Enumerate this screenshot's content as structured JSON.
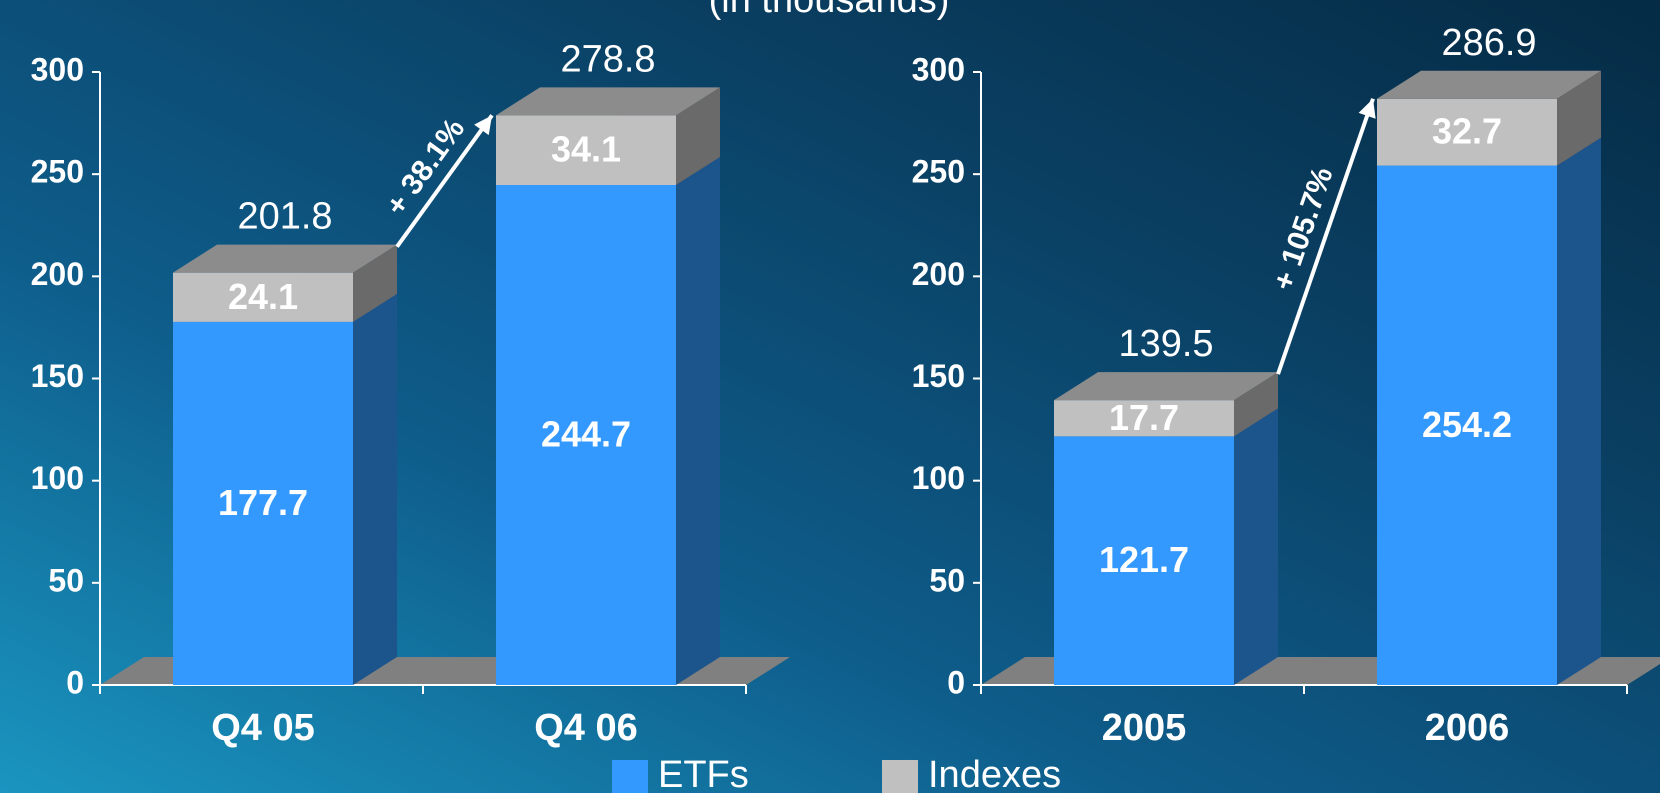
{
  "subtitle": "(in thousands)",
  "chart_data": [
    {
      "type": "bar",
      "stacked": true,
      "categories": [
        "Q4 05",
        "Q4 06"
      ],
      "series": [
        {
          "name": "ETFs",
          "color": "#3399ff",
          "values": [
            177.7,
            244.7
          ]
        },
        {
          "name": "Indexes",
          "color": "#c0c0c0",
          "values": [
            24.1,
            34.1
          ]
        }
      ],
      "totals": [
        201.8,
        278.8
      ],
      "annotation": "+ 38.1%",
      "ylim": [
        0,
        300
      ],
      "yticks": [
        0,
        50,
        100,
        150,
        200,
        250,
        300
      ]
    },
    {
      "type": "bar",
      "stacked": true,
      "categories": [
        "2005",
        "2006"
      ],
      "series": [
        {
          "name": "ETFs",
          "color": "#3399ff",
          "values": [
            121.7,
            254.2
          ]
        },
        {
          "name": "Indexes",
          "color": "#c0c0c0",
          "values": [
            17.7,
            32.7
          ]
        }
      ],
      "totals": [
        139.5,
        286.9
      ],
      "annotation": "+ 105.7%",
      "ylim": [
        0,
        300
      ],
      "yticks": [
        0,
        50,
        100,
        150,
        200,
        250,
        300
      ]
    }
  ]
}
